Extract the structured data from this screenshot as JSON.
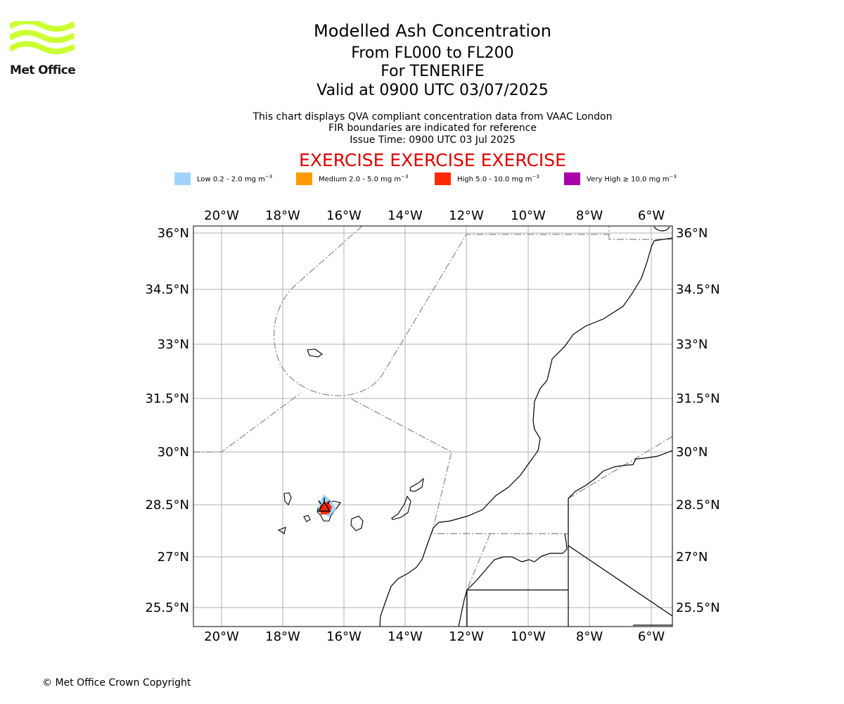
{
  "brand": {
    "name": "Met Office",
    "logo_color": "#ccff33"
  },
  "titles": {
    "main": "Modelled Ash Concentration",
    "levels": "From FL000 to FL200",
    "location": "For TENERIFE",
    "valid": "Valid at 0900 UTC 03/07/2025"
  },
  "subtitles": {
    "line1": "This chart displays QVA compliant concentration data from VAAC London",
    "line2": "FIR boundaries are indicated for reference",
    "line3": "Issue Time: 0900 UTC 03 Jul 2025"
  },
  "exercise_banner": {
    "text": "EXERCISE EXERCISE EXERCISE",
    "color": "#e00000"
  },
  "legend": [
    {
      "label": "Low 0.2 - 2.0 mg m",
      "color": "#a0d4ff"
    },
    {
      "label": "Medium 2.0 - 5.0 mg m",
      "color": "#ff9900"
    },
    {
      "label": "High 5.0 - 10.0 mg m",
      "color": "#ff2a00"
    },
    {
      "label": "Very High ≥ 10.0 mg m",
      "color": "#aa00aa"
    }
  ],
  "legend_unit_exponent": "−3",
  "map": {
    "lon_range": [
      -21,
      -5.4
    ],
    "lat_range": [
      25,
      36.2
    ],
    "lon_ticks": [
      "20°W",
      "18°W",
      "16°W",
      "14°W",
      "12°W",
      "10°W",
      "8°W",
      "6°W"
    ],
    "lat_ticks": [
      "36°N",
      "34.5°N",
      "33°N",
      "31.5°N",
      "30°N",
      "28.5°N",
      "27°N",
      "25.5°N"
    ],
    "volcano_symbol": "warning-triangle",
    "ash_levels_shown": [
      "Low",
      "High"
    ]
  },
  "footer": {
    "copyright": "© Met Office Crown Copyright"
  }
}
